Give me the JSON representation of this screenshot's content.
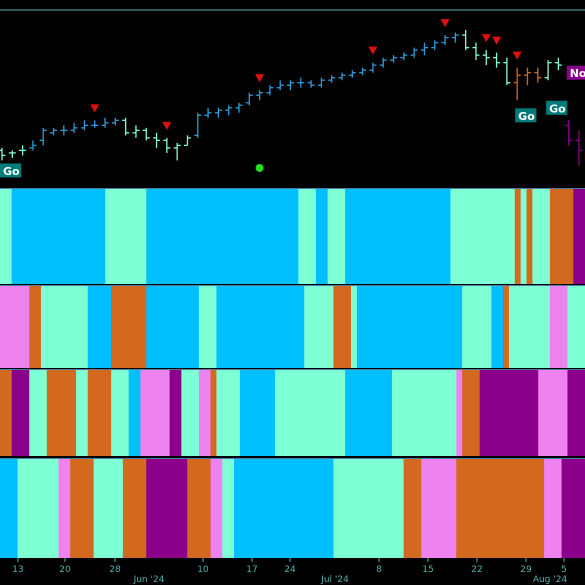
{
  "chart_data": {
    "type": "ohlc",
    "x_axis": {
      "day_ticks": [
        "13",
        "20",
        "28",
        "10",
        "17",
        "24",
        "8",
        "15",
        "22",
        "29",
        "5"
      ],
      "month_labels": [
        "Jun '24",
        "Jul '24",
        "Aug '24"
      ]
    },
    "price": {
      "bars": [
        {
          "open": 70,
          "high": 71,
          "low": 66,
          "close": 68,
          "color": "#7fffd4"
        },
        {
          "open": 69,
          "high": 70,
          "low": 67,
          "close": 69,
          "color": "#7fffd4"
        },
        {
          "open": 70,
          "high": 72,
          "low": 68,
          "close": 70,
          "color": "#7fffd4"
        },
        {
          "open": 71,
          "high": 74,
          "low": 70,
          "close": 72,
          "color": "#2b9cd8"
        },
        {
          "open": 74,
          "high": 79,
          "low": 72,
          "close": 78,
          "color": "#2b9cd8"
        },
        {
          "open": 77,
          "high": 79,
          "low": 76,
          "close": 78,
          "color": "#2b9cd8"
        },
        {
          "open": 78,
          "high": 80,
          "low": 76,
          "close": 78,
          "color": "#2b9cd8"
        },
        {
          "open": 78,
          "high": 81,
          "low": 77,
          "close": 79,
          "color": "#2b9cd8"
        },
        {
          "open": 79,
          "high": 82,
          "low": 78,
          "close": 80,
          "color": "#2b9cd8"
        },
        {
          "open": 80,
          "high": 82,
          "low": 79,
          "close": 80,
          "color": "#2b9cd8"
        },
        {
          "open": 80,
          "high": 83,
          "low": 79,
          "close": 81,
          "color": "#2b9cd8"
        },
        {
          "open": 81,
          "high": 83,
          "low": 80,
          "close": 82,
          "color": "#2b9cd8"
        },
        {
          "open": 82,
          "high": 83,
          "low": 76,
          "close": 77,
          "color": "#7fffd4"
        },
        {
          "open": 77,
          "high": 80,
          "low": 75,
          "close": 78,
          "color": "#7fffd4"
        },
        {
          "open": 78,
          "high": 79,
          "low": 74,
          "close": 75,
          "color": "#7fffd4"
        },
        {
          "open": 75,
          "high": 77,
          "low": 71,
          "close": 74,
          "color": "#7fffd4"
        },
        {
          "open": 74,
          "high": 75,
          "low": 69,
          "close": 71,
          "color": "#7fffd4"
        },
        {
          "open": 71,
          "high": 73,
          "low": 66,
          "close": 72,
          "color": "#7fffd4"
        },
        {
          "open": 72,
          "high": 76,
          "low": 72,
          "close": 75,
          "color": "#7fffd4"
        },
        {
          "open": 76,
          "high": 85,
          "low": 75,
          "close": 84,
          "color": "#2b9cd8"
        },
        {
          "open": 84,
          "high": 87,
          "low": 83,
          "close": 85,
          "color": "#2b9cd8"
        },
        {
          "open": 85,
          "high": 87,
          "low": 83,
          "close": 86,
          "color": "#2b9cd8"
        },
        {
          "open": 86,
          "high": 88,
          "low": 84,
          "close": 87,
          "color": "#2b9cd8"
        },
        {
          "open": 87,
          "high": 89,
          "low": 85,
          "close": 88,
          "color": "#2b9cd8"
        },
        {
          "open": 89,
          "high": 93,
          "low": 88,
          "close": 92,
          "color": "#2b9cd8"
        },
        {
          "open": 92,
          "high": 94,
          "low": 90,
          "close": 93,
          "color": "#2b9cd8"
        },
        {
          "open": 93,
          "high": 96,
          "low": 92,
          "close": 95,
          "color": "#2b9cd8"
        },
        {
          "open": 95,
          "high": 98,
          "low": 94,
          "close": 96,
          "color": "#2b9cd8"
        },
        {
          "open": 96,
          "high": 98,
          "low": 94,
          "close": 97,
          "color": "#2b9cd8"
        },
        {
          "open": 97,
          "high": 99,
          "low": 95,
          "close": 97,
          "color": "#2b9cd8"
        },
        {
          "open": 97,
          "high": 98,
          "low": 95,
          "close": 96,
          "color": "#2b9cd8"
        },
        {
          "open": 96,
          "high": 99,
          "low": 95,
          "close": 98,
          "color": "#2b9cd8"
        },
        {
          "open": 98,
          "high": 100,
          "low": 97,
          "close": 99,
          "color": "#2b9cd8"
        },
        {
          "open": 99,
          "high": 101,
          "low": 98,
          "close": 100,
          "color": "#2b9cd8"
        },
        {
          "open": 100,
          "high": 102,
          "low": 99,
          "close": 101,
          "color": "#2b9cd8"
        },
        {
          "open": 101,
          "high": 103,
          "low": 100,
          "close": 102,
          "color": "#2b9cd8"
        },
        {
          "open": 102,
          "high": 105,
          "low": 101,
          "close": 104,
          "color": "#2b9cd8"
        },
        {
          "open": 104,
          "high": 107,
          "low": 103,
          "close": 106,
          "color": "#2b9cd8"
        },
        {
          "open": 106,
          "high": 108,
          "low": 105,
          "close": 107,
          "color": "#2b9cd8"
        },
        {
          "open": 107,
          "high": 109,
          "low": 106,
          "close": 108,
          "color": "#2b9cd8"
        },
        {
          "open": 108,
          "high": 111,
          "low": 107,
          "close": 110,
          "color": "#2b9cd8"
        },
        {
          "open": 110,
          "high": 113,
          "low": 108,
          "close": 111,
          "color": "#2b9cd8"
        },
        {
          "open": 111,
          "high": 114,
          "low": 110,
          "close": 113,
          "color": "#2b9cd8"
        },
        {
          "open": 113,
          "high": 116,
          "low": 112,
          "close": 115,
          "color": "#2b9cd8"
        },
        {
          "open": 115,
          "high": 117,
          "low": 113,
          "close": 116,
          "color": "#2b9cd8"
        },
        {
          "open": 116,
          "high": 118,
          "low": 110,
          "close": 111,
          "color": "#7fffd4"
        },
        {
          "open": 111,
          "high": 113,
          "low": 106,
          "close": 108,
          "color": "#7fffd4"
        },
        {
          "open": 108,
          "high": 110,
          "low": 104,
          "close": 107,
          "color": "#7fffd4"
        },
        {
          "open": 107,
          "high": 109,
          "low": 103,
          "close": 105,
          "color": "#7fffd4"
        },
        {
          "open": 105,
          "high": 107,
          "low": 96,
          "close": 97,
          "color": "#7fffd4"
        },
        {
          "open": 97,
          "high": 103,
          "low": 90,
          "close": 100,
          "color": "#d2691e"
        },
        {
          "open": 100,
          "high": 103,
          "low": 96,
          "close": 101,
          "color": "#d2691e"
        },
        {
          "open": 101,
          "high": 103,
          "low": 97,
          "close": 99,
          "color": "#d2691e"
        },
        {
          "open": 99,
          "high": 106,
          "low": 98,
          "close": 105,
          "color": "#7fffd4"
        },
        {
          "open": 105,
          "high": 107,
          "low": 102,
          "close": 104,
          "color": "#7fffd4"
        },
        {
          "open": 80,
          "high": 82,
          "low": 72,
          "close": 74,
          "color": "#8b008b"
        },
        {
          "open": 74,
          "high": 78,
          "low": 64,
          "close": 70,
          "color": "#8b008b"
        }
      ],
      "y_range": [
        55,
        130
      ],
      "reference_line": 126,
      "down_arrows": [
        9,
        16,
        25,
        36,
        43,
        47,
        48,
        50
      ],
      "dots": [
        {
          "bar": 25,
          "value": 63
        }
      ],
      "labels": [
        {
          "text": "Go",
          "bar": 0,
          "value": 62,
          "color": "#007b7b"
        },
        {
          "text": "Go",
          "bar": 50,
          "value": 84,
          "color": "#007b7b"
        },
        {
          "text": "Go",
          "bar": 53,
          "value": 87,
          "color": "#007b7b"
        },
        {
          "text": "NoGo",
          "bar": 55,
          "value": 101,
          "color": "#8b008b"
        }
      ]
    },
    "bands": [
      {
        "segments": [
          {
            "end": 2,
            "color": "#7fffd4"
          },
          {
            "end": 18,
            "color": "#00bfff"
          },
          {
            "end": 25,
            "color": "#7fffd4"
          },
          {
            "end": 51,
            "color": "#00bfff"
          },
          {
            "end": 54,
            "color": "#7fffd4"
          },
          {
            "end": 56,
            "color": "#00bfff"
          },
          {
            "end": 59,
            "color": "#7fffd4"
          },
          {
            "end": 77,
            "color": "#00bfff"
          },
          {
            "end": 88,
            "color": "#7fffd4"
          },
          {
            "end": 89,
            "color": "#d2691e"
          },
          {
            "end": 90,
            "color": "#7fffd4"
          },
          {
            "end": 91,
            "color": "#d2691e"
          },
          {
            "end": 94,
            "color": "#7fffd4"
          },
          {
            "end": 98,
            "color": "#d2691e"
          },
          {
            "end": 100,
            "color": "#8b008b"
          }
        ]
      },
      {
        "segments": [
          {
            "end": 5,
            "color": "#ee82ee"
          },
          {
            "end": 7,
            "color": "#d2691e"
          },
          {
            "end": 15,
            "color": "#7fffd4"
          },
          {
            "end": 19,
            "color": "#00bfff"
          },
          {
            "end": 25,
            "color": "#d2691e"
          },
          {
            "end": 34,
            "color": "#00bfff"
          },
          {
            "end": 37,
            "color": "#7fffd4"
          },
          {
            "end": 52,
            "color": "#00bfff"
          },
          {
            "end": 57,
            "color": "#7fffd4"
          },
          {
            "end": 60,
            "color": "#d2691e"
          },
          {
            "end": 61,
            "color": "#7fffd4"
          },
          {
            "end": 79,
            "color": "#00bfff"
          },
          {
            "end": 84,
            "color": "#7fffd4"
          },
          {
            "end": 86,
            "color": "#00bfff"
          },
          {
            "end": 87,
            "color": "#d2691e"
          },
          {
            "end": 94,
            "color": "#7fffd4"
          },
          {
            "end": 97,
            "color": "#ee82ee"
          },
          {
            "end": 100,
            "color": "#7fffd4"
          }
        ]
      },
      {
        "segments": [
          {
            "end": 2,
            "color": "#d2691e"
          },
          {
            "end": 5,
            "color": "#8b008b"
          },
          {
            "end": 8,
            "color": "#7fffd4"
          },
          {
            "end": 13,
            "color": "#d2691e"
          },
          {
            "end": 15,
            "color": "#7fffd4"
          },
          {
            "end": 19,
            "color": "#d2691e"
          },
          {
            "end": 22,
            "color": "#7fffd4"
          },
          {
            "end": 24,
            "color": "#00bfff"
          },
          {
            "end": 29,
            "color": "#ee82ee"
          },
          {
            "end": 31,
            "color": "#8b008b"
          },
          {
            "end": 34,
            "color": "#7fffd4"
          },
          {
            "end": 36,
            "color": "#ee82ee"
          },
          {
            "end": 37,
            "color": "#d2691e"
          },
          {
            "end": 41,
            "color": "#7fffd4"
          },
          {
            "end": 47,
            "color": "#00bfff"
          },
          {
            "end": 59,
            "color": "#7fffd4"
          },
          {
            "end": 67,
            "color": "#00bfff"
          },
          {
            "end": 78,
            "color": "#7fffd4"
          },
          {
            "end": 79,
            "color": "#ee82ee"
          },
          {
            "end": 82,
            "color": "#d2691e"
          },
          {
            "end": 92,
            "color": "#8b008b"
          },
          {
            "end": 97,
            "color": "#ee82ee"
          },
          {
            "end": 100,
            "color": "#8b008b"
          }
        ]
      },
      {
        "segments": [
          {
            "end": 3,
            "color": "#00bfff"
          },
          {
            "end": 10,
            "color": "#7fffd4"
          },
          {
            "end": 12,
            "color": "#ee82ee"
          },
          {
            "end": 16,
            "color": "#d2691e"
          },
          {
            "end": 21,
            "color": "#7fffd4"
          },
          {
            "end": 25,
            "color": "#d2691e"
          },
          {
            "end": 32,
            "color": "#8b008b"
          },
          {
            "end": 36,
            "color": "#d2691e"
          },
          {
            "end": 38,
            "color": "#ee82ee"
          },
          {
            "end": 40,
            "color": "#7fffd4"
          },
          {
            "end": 57,
            "color": "#00bfff"
          },
          {
            "end": 69,
            "color": "#7fffd4"
          },
          {
            "end": 72,
            "color": "#d2691e"
          },
          {
            "end": 78,
            "color": "#ee82ee"
          },
          {
            "end": 82,
            "color": "#d2691e"
          },
          {
            "end": 93,
            "color": "#d2691e"
          },
          {
            "end": 96,
            "color": "#ee82ee"
          },
          {
            "end": 100,
            "color": "#8b008b"
          }
        ]
      }
    ]
  }
}
